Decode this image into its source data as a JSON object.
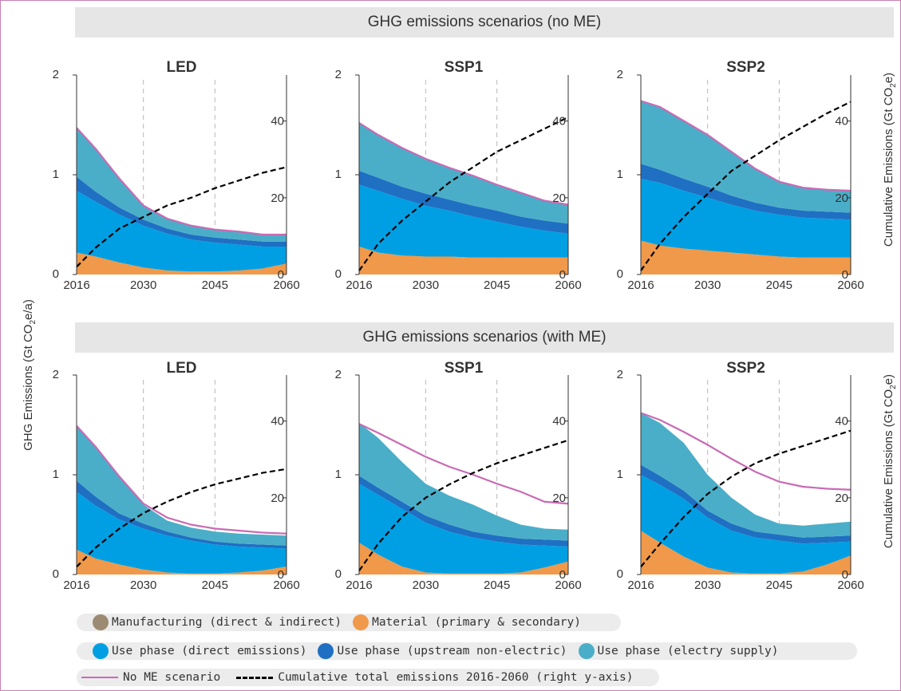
{
  "banners": {
    "top": "GHG emissions scenarios (no ME)",
    "bottom": "GHG emissions scenarios (with ME)"
  },
  "y_axis_left_label": "GHG Emissions (Gt CO2e/a)",
  "y_axis_right_label": "Cumulative Emissions (Gt CO2e)",
  "colors": {
    "manufacturing": "#9c8a72",
    "material": "#f0994a",
    "use_direct": "#009fe3",
    "use_upstream": "#1f6fc2",
    "use_electricity": "#4aaec8",
    "no_me_line": "#c86bb4",
    "cumulative_line": "#000000"
  },
  "legend": {
    "row1": [
      {
        "label": "Manufacturing (direct & indirect)",
        "color": "#9c8a72",
        "icon": "circle"
      },
      {
        "label": "Material (primary & secondary)",
        "color": "#f0994a",
        "icon": "circle"
      }
    ],
    "row2": [
      {
        "label": "Use phase (direct emissions)",
        "color": "#009fe3",
        "icon": "circle"
      },
      {
        "label": "Use phase (upstream non-electric)",
        "color": "#1f6fc2",
        "icon": "circle"
      },
      {
        "label": "Use phase (electry supply)",
        "color": "#4aaec8",
        "icon": "circle"
      }
    ],
    "row3": [
      {
        "label": "No ME scenario",
        "color": "#c86bb4",
        "icon": "solid-line"
      },
      {
        "label": "Cumulative total emissions 2016-2060 (right y-axis)",
        "color": "#000000",
        "icon": "dashed-line"
      }
    ]
  },
  "chart_data": [
    {
      "type": "area",
      "title": "LED",
      "row": "no ME",
      "x": [
        2016,
        2020,
        2025,
        2030,
        2035,
        2040,
        2045,
        2050,
        2055,
        2060
      ],
      "xticks": [
        2016,
        2030,
        2045,
        2060
      ],
      "ylim": [
        0,
        2
      ],
      "yticks": [
        0,
        1,
        2
      ],
      "y2lim": [
        0,
        52
      ],
      "y2ticks": [
        0,
        20,
        40
      ],
      "series": [
        {
          "name": "Material (primary & secondary)",
          "values": [
            0.22,
            0.18,
            0.12,
            0.07,
            0.04,
            0.03,
            0.03,
            0.04,
            0.06,
            0.11
          ]
        },
        {
          "name": "Use phase (direct emissions)",
          "values": [
            0.62,
            0.55,
            0.48,
            0.42,
            0.37,
            0.32,
            0.29,
            0.26,
            0.22,
            0.17
          ]
        },
        {
          "name": "Use phase (upstream non-electric)",
          "values": [
            0.14,
            0.1,
            0.07,
            0.06,
            0.05,
            0.05,
            0.05,
            0.05,
            0.05,
            0.05
          ]
        },
        {
          "name": "Use phase (electry supply)",
          "values": [
            0.49,
            0.43,
            0.29,
            0.14,
            0.1,
            0.09,
            0.08,
            0.08,
            0.07,
            0.07
          ]
        }
      ],
      "no_me_total": [
        1.47,
        1.26,
        0.96,
        0.69,
        0.56,
        0.49,
        0.45,
        0.43,
        0.4,
        0.4
      ],
      "cumulative": [
        2,
        7,
        12,
        15,
        18,
        20,
        22.5,
        24.5,
        26.5,
        28
      ]
    },
    {
      "type": "area",
      "title": "SSP1",
      "row": "no ME",
      "x": [
        2016,
        2020,
        2025,
        2030,
        2035,
        2040,
        2045,
        2050,
        2055,
        2060
      ],
      "xticks": [
        2016,
        2030,
        2045,
        2060
      ],
      "ylim": [
        0,
        2
      ],
      "yticks": [
        0,
        1,
        2
      ],
      "y2lim": [
        0,
        52
      ],
      "y2ticks": [
        0,
        20,
        40
      ],
      "series": [
        {
          "name": "Material (primary & secondary)",
          "values": [
            0.28,
            0.22,
            0.19,
            0.18,
            0.18,
            0.17,
            0.17,
            0.17,
            0.17,
            0.17
          ]
        },
        {
          "name": "Use phase (direct emissions)",
          "values": [
            0.62,
            0.62,
            0.57,
            0.51,
            0.46,
            0.41,
            0.36,
            0.31,
            0.27,
            0.24
          ]
        },
        {
          "name": "Use phase (upstream non-electric)",
          "values": [
            0.14,
            0.13,
            0.12,
            0.12,
            0.11,
            0.11,
            0.11,
            0.1,
            0.1,
            0.1
          ]
        },
        {
          "name": "Use phase (electry supply)",
          "values": [
            0.48,
            0.43,
            0.39,
            0.35,
            0.32,
            0.3,
            0.26,
            0.24,
            0.2,
            0.19
          ]
        }
      ],
      "no_me_total": [
        1.52,
        1.4,
        1.27,
        1.16,
        1.07,
        0.99,
        0.9,
        0.82,
        0.74,
        0.7
      ],
      "cumulative": [
        1,
        8,
        14,
        19,
        24,
        28,
        32,
        35,
        38,
        41
      ]
    },
    {
      "type": "area",
      "title": "SSP2",
      "row": "no ME",
      "x": [
        2016,
        2020,
        2025,
        2030,
        2035,
        2040,
        2045,
        2050,
        2055,
        2060
      ],
      "xticks": [
        2016,
        2030,
        2045,
        2060
      ],
      "ylim": [
        0,
        2
      ],
      "yticks": [
        0,
        1,
        2
      ],
      "y2lim": [
        0,
        52
      ],
      "y2ticks": [
        0,
        20,
        40
      ],
      "series": [
        {
          "name": "Material (primary & secondary)",
          "values": [
            0.34,
            0.29,
            0.26,
            0.24,
            0.22,
            0.2,
            0.18,
            0.17,
            0.17,
            0.17
          ]
        },
        {
          "name": "Use phase (direct emissions)",
          "values": [
            0.62,
            0.63,
            0.58,
            0.53,
            0.48,
            0.44,
            0.42,
            0.4,
            0.39,
            0.38
          ]
        },
        {
          "name": "Use phase (upstream non-electric)",
          "values": [
            0.15,
            0.13,
            0.12,
            0.11,
            0.09,
            0.08,
            0.07,
            0.07,
            0.07,
            0.07
          ]
        },
        {
          "name": "Use phase (electry supply)",
          "values": [
            0.63,
            0.63,
            0.58,
            0.52,
            0.44,
            0.34,
            0.26,
            0.23,
            0.22,
            0.22
          ]
        }
      ],
      "no_me_total": [
        1.74,
        1.68,
        1.54,
        1.4,
        1.23,
        1.06,
        0.93,
        0.87,
        0.85,
        0.84
      ],
      "cumulative": [
        1,
        8,
        15,
        21,
        27,
        31,
        35,
        38.5,
        42,
        45
      ]
    },
    {
      "type": "area",
      "title": "LED",
      "row": "with ME",
      "x": [
        2016,
        2020,
        2025,
        2030,
        2035,
        2040,
        2045,
        2050,
        2055,
        2060
      ],
      "xticks": [
        2016,
        2030,
        2045,
        2060
      ],
      "ylim": [
        0,
        2
      ],
      "yticks": [
        0,
        1,
        2
      ],
      "y2lim": [
        0,
        52
      ],
      "y2ticks": [
        0,
        20,
        40
      ],
      "series": [
        {
          "name": "Material (primary & secondary)",
          "values": [
            0.25,
            0.16,
            0.1,
            0.05,
            0.02,
            0.01,
            0.01,
            0.02,
            0.04,
            0.08
          ]
        },
        {
          "name": "Use phase (direct emissions)",
          "values": [
            0.58,
            0.53,
            0.45,
            0.41,
            0.37,
            0.33,
            0.29,
            0.26,
            0.23,
            0.18
          ]
        },
        {
          "name": "Use phase (upstream non-electric)",
          "values": [
            0.11,
            0.09,
            0.06,
            0.05,
            0.04,
            0.03,
            0.03,
            0.03,
            0.03,
            0.03
          ]
        },
        {
          "name": "Use phase (electry supply)",
          "values": [
            0.54,
            0.5,
            0.37,
            0.19,
            0.11,
            0.1,
            0.1,
            0.1,
            0.1,
            0.1
          ]
        }
      ],
      "no_me_total": [
        1.49,
        1.28,
        0.98,
        0.71,
        0.57,
        0.5,
        0.46,
        0.44,
        0.42,
        0.41
      ],
      "cumulative": [
        2,
        7,
        12,
        16,
        19,
        21.5,
        23.5,
        25,
        26.5,
        27.5
      ]
    },
    {
      "type": "area",
      "title": "SSP1",
      "row": "with ME",
      "x": [
        2016,
        2020,
        2025,
        2030,
        2035,
        2040,
        2045,
        2050,
        2055,
        2060
      ],
      "xticks": [
        2016,
        2030,
        2045,
        2060
      ],
      "ylim": [
        0,
        2
      ],
      "yticks": [
        0,
        1,
        2
      ],
      "y2lim": [
        0,
        52
      ],
      "y2ticks": [
        0,
        20,
        40
      ],
      "series": [
        {
          "name": "Material (primary & secondary)",
          "values": [
            0.32,
            0.2,
            0.08,
            0.02,
            0.01,
            0.01,
            0.01,
            0.02,
            0.07,
            0.13
          ]
        },
        {
          "name": "Use phase (direct emissions)",
          "values": [
            0.59,
            0.6,
            0.58,
            0.5,
            0.42,
            0.36,
            0.32,
            0.28,
            0.22,
            0.15
          ]
        },
        {
          "name": "Use phase (upstream non-electric)",
          "values": [
            0.08,
            0.07,
            0.07,
            0.07,
            0.07,
            0.06,
            0.06,
            0.06,
            0.06,
            0.06
          ]
        },
        {
          "name": "Use phase (electry supply)",
          "values": [
            0.53,
            0.5,
            0.4,
            0.32,
            0.29,
            0.27,
            0.2,
            0.14,
            0.11,
            0.11
          ]
        }
      ],
      "no_me_total": [
        1.51,
        1.42,
        1.3,
        1.18,
        1.08,
        1.0,
        0.91,
        0.83,
        0.73,
        0.71
      ],
      "cumulative": [
        1,
        8,
        15,
        20,
        23.5,
        26.5,
        29,
        31,
        33,
        35
      ]
    },
    {
      "type": "area",
      "title": "SSP2",
      "row": "with ME",
      "x": [
        2016,
        2020,
        2025,
        2030,
        2035,
        2040,
        2045,
        2050,
        2055,
        2060
      ],
      "xticks": [
        2016,
        2030,
        2045,
        2060
      ],
      "ylim": [
        0,
        2
      ],
      "yticks": [
        0,
        1,
        2
      ],
      "y2lim": [
        0,
        52
      ],
      "y2ticks": [
        0,
        20,
        40
      ],
      "series": [
        {
          "name": "Material (primary & secondary)",
          "values": [
            0.44,
            0.32,
            0.18,
            0.07,
            0.02,
            0.01,
            0.01,
            0.03,
            0.1,
            0.19
          ]
        },
        {
          "name": "Use phase (direct emissions)",
          "values": [
            0.56,
            0.58,
            0.58,
            0.5,
            0.42,
            0.36,
            0.33,
            0.28,
            0.22,
            0.14
          ]
        },
        {
          "name": "Use phase (upstream non-electric)",
          "values": [
            0.1,
            0.09,
            0.08,
            0.07,
            0.07,
            0.06,
            0.06,
            0.06,
            0.06,
            0.06
          ]
        },
        {
          "name": "Use phase (electry supply)",
          "values": [
            0.52,
            0.53,
            0.48,
            0.36,
            0.26,
            0.17,
            0.11,
            0.12,
            0.13,
            0.14
          ]
        }
      ],
      "no_me_total": [
        1.62,
        1.55,
        1.43,
        1.3,
        1.16,
        1.03,
        0.93,
        0.88,
        0.86,
        0.85
      ],
      "cumulative": [
        2,
        8,
        15,
        21,
        25.5,
        29,
        31.5,
        33.5,
        35.5,
        37.5
      ]
    }
  ]
}
